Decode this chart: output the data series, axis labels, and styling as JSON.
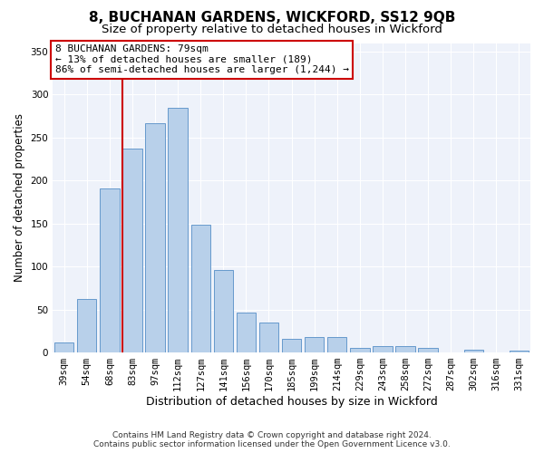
{
  "title1": "8, BUCHANAN GARDENS, WICKFORD, SS12 9QB",
  "title2": "Size of property relative to detached houses in Wickford",
  "xlabel": "Distribution of detached houses by size in Wickford",
  "ylabel": "Number of detached properties",
  "categories": [
    "39sqm",
    "54sqm",
    "68sqm",
    "83sqm",
    "97sqm",
    "112sqm",
    "127sqm",
    "141sqm",
    "156sqm",
    "170sqm",
    "185sqm",
    "199sqm",
    "214sqm",
    "229sqm",
    "243sqm",
    "258sqm",
    "272sqm",
    "287sqm",
    "302sqm",
    "316sqm",
    "331sqm"
  ],
  "values": [
    12,
    62,
    191,
    237,
    267,
    285,
    149,
    96,
    46,
    35,
    16,
    18,
    18,
    5,
    7,
    7,
    5,
    0,
    3,
    0,
    2
  ],
  "bar_color": "#b8d0ea",
  "bar_edge_color": "#6699cc",
  "vline_bar_index": 3,
  "vline_color": "#cc0000",
  "annotation_line1": "8 BUCHANAN GARDENS: 79sqm",
  "annotation_line2": "← 13% of detached houses are smaller (189)",
  "annotation_line3": "86% of semi-detached houses are larger (1,244) →",
  "annotation_box_color": "#ffffff",
  "annotation_box_edge": "#cc0000",
  "ylim": [
    0,
    360
  ],
  "yticks": [
    0,
    50,
    100,
    150,
    200,
    250,
    300,
    350
  ],
  "background_color": "#eef2fa",
  "grid_color": "#ffffff",
  "footer1": "Contains HM Land Registry data © Crown copyright and database right 2024.",
  "footer2": "Contains public sector information licensed under the Open Government Licence v3.0.",
  "title1_fontsize": 11,
  "title2_fontsize": 9.5,
  "xlabel_fontsize": 9,
  "ylabel_fontsize": 8.5,
  "tick_fontsize": 7.5,
  "annot_fontsize": 8,
  "footer_fontsize": 6.5
}
